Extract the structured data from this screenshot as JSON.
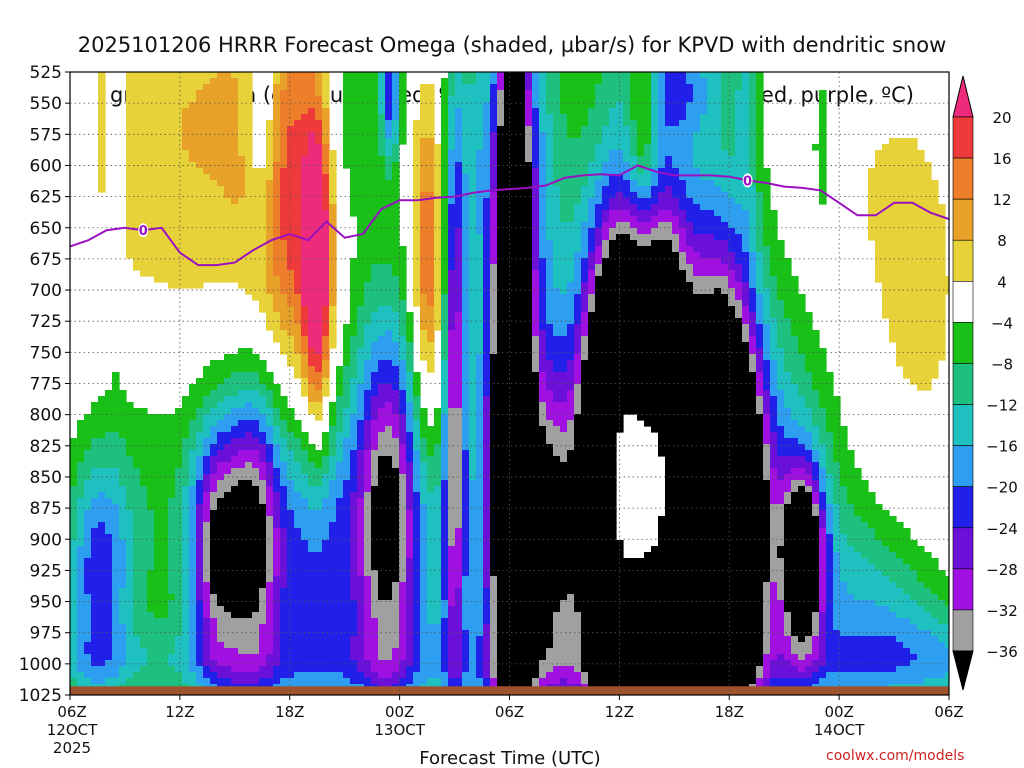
{
  "chart_data": {
    "type": "heatmap",
    "title_line1": "2025101206 HRRR Forecast Omega (shaded, µbar/s) for KPVD with dendritic snow",
    "title_line2": "growth region (contoured, red, ºC) and freezing level (contoured, purple, ºC)",
    "xlabel": "Forecast Time (UTC)",
    "x_hours": [
      0,
      6,
      12,
      18,
      24,
      30,
      36,
      42,
      48,
      54,
      60,
      66,
      72
    ],
    "x_ticks": [
      {
        "hour": 0,
        "lines": [
          "06Z",
          "12OCT",
          "2025"
        ]
      },
      {
        "hour": 6,
        "lines": [
          "12Z"
        ]
      },
      {
        "hour": 12,
        "lines": [
          "18Z"
        ]
      },
      {
        "hour": 18,
        "lines": [
          "00Z",
          "13OCT"
        ]
      },
      {
        "hour": 24,
        "lines": [
          "06Z"
        ]
      },
      {
        "hour": 30,
        "lines": [
          "12Z"
        ]
      },
      {
        "hour": 36,
        "lines": [
          "18Z"
        ]
      },
      {
        "hour": 42,
        "lines": [
          "00Z",
          "14OCT"
        ]
      },
      {
        "hour": 48,
        "lines": [
          "06Z"
        ]
      }
    ],
    "x_range": [
      0,
      48
    ],
    "y_levels": [
      "525",
      "550",
      "575",
      "600",
      "625",
      "650",
      "675",
      "700",
      "725",
      "750",
      "775",
      "800",
      "825",
      "850",
      "875",
      "900",
      "925",
      "950",
      "975",
      "1000",
      "1025"
    ],
    "y_range_hpa": [
      525,
      1025
    ],
    "colorbar": {
      "labels": [
        "20",
        "16",
        "12",
        "8",
        "4",
        "−4",
        "−8",
        "−12",
        "−16",
        "−20",
        "−24",
        "−28",
        "−32",
        "−36"
      ],
      "bins": [
        {
          "lo": 20,
          "hi": 99,
          "color": "#ee2a7b"
        },
        {
          "lo": 16,
          "hi": 20,
          "color": "#ee3a3a"
        },
        {
          "lo": 12,
          "hi": 16,
          "color": "#ee7f2a"
        },
        {
          "lo": 8,
          "hi": 12,
          "color": "#e8a22a"
        },
        {
          "lo": 4,
          "hi": 8,
          "color": "#e8d23a"
        },
        {
          "lo": -4,
          "hi": 4,
          "color": "#ffffff"
        },
        {
          "lo": -8,
          "hi": -4,
          "color": "#18c018"
        },
        {
          "lo": -12,
          "hi": -8,
          "color": "#1ec080"
        },
        {
          "lo": -16,
          "hi": -12,
          "color": "#1ec0c0"
        },
        {
          "lo": -20,
          "hi": -16,
          "color": "#2e9ef0"
        },
        {
          "lo": -24,
          "hi": -20,
          "color": "#2020e8"
        },
        {
          "lo": -28,
          "hi": -24,
          "color": "#6a10d8"
        },
        {
          "lo": -32,
          "hi": -28,
          "color": "#a010e0"
        },
        {
          "lo": -36,
          "hi": -32,
          "color": "#a0a0a0"
        },
        {
          "lo": -99,
          "hi": -36,
          "color": "#000000"
        }
      ]
    },
    "ground_color": "#a0522d",
    "freezing_level": {
      "label": "0",
      "color": "#9b10c0",
      "hours": [
        0,
        1,
        2,
        3,
        4,
        5,
        6,
        7,
        8,
        9,
        10,
        11,
        12,
        13,
        14,
        15,
        16,
        17,
        18,
        19,
        20,
        21,
        22,
        23,
        24,
        25,
        26,
        27,
        28,
        29,
        30,
        31,
        32,
        33,
        34,
        35,
        36,
        37,
        38,
        39,
        40,
        41,
        42,
        43,
        44,
        45,
        46,
        47,
        48
      ],
      "levels": [
        665,
        660,
        652,
        650,
        652,
        650,
        670,
        680,
        680,
        678,
        668,
        660,
        655,
        660,
        645,
        658,
        655,
        635,
        628,
        628,
        626,
        625,
        622,
        620,
        619,
        618,
        616,
        610,
        608,
        607,
        608,
        600,
        605,
        608,
        608,
        608,
        609,
        612,
        614,
        617,
        618,
        620,
        630,
        640,
        640,
        630,
        630,
        638,
        643
      ],
      "label_hours": [
        4,
        37
      ]
    },
    "omega_centers": [
      {
        "h": 1.5,
        "p": 930,
        "sx": 1.3,
        "sy": 70,
        "v": -20
      },
      {
        "h": 3.5,
        "p": 850,
        "sx": 2.2,
        "sy": 110,
        "v": -8
      },
      {
        "h": 8.0,
        "p": 910,
        "sx": 1.0,
        "sy": 70,
        "v": -28
      },
      {
        "h": 10.0,
        "p": 900,
        "sx": 1.0,
        "sy": 80,
        "v": -26
      },
      {
        "h": 9.0,
        "p": 880,
        "sx": 3.0,
        "sy": 130,
        "v": -12
      },
      {
        "h": 12.0,
        "p": 880,
        "sx": 1.6,
        "sy": 120,
        "v": -8
      },
      {
        "h": 14.0,
        "p": 920,
        "sx": 2.0,
        "sy": 80,
        "v": -12
      },
      {
        "h": 17.5,
        "p": 890,
        "sx": 1.1,
        "sy": 100,
        "v": -26
      },
      {
        "h": 16.5,
        "p": 860,
        "sx": 1.8,
        "sy": 140,
        "v": -14
      },
      {
        "h": 21.0,
        "p": 780,
        "sx": 0.4,
        "sy": 160,
        "v": -28
      },
      {
        "h": 20.5,
        "p": 930,
        "sx": 1.4,
        "sy": 90,
        "v": -10
      },
      {
        "h": 24.2,
        "p": 780,
        "sx": 0.6,
        "sy": 230,
        "v": -60
      },
      {
        "h": 23.8,
        "p": 820,
        "sx": 1.2,
        "sy": 220,
        "v": -22
      },
      {
        "h": 26.0,
        "p": 900,
        "sx": 1.4,
        "sy": 90,
        "v": -30
      },
      {
        "h": 29.5,
        "p": 850,
        "sx": 1.1,
        "sy": 130,
        "v": -55
      },
      {
        "h": 31.0,
        "p": 860,
        "sx": 1.1,
        "sy": 140,
        "v": -52
      },
      {
        "h": 32.6,
        "p": 860,
        "sx": 1.0,
        "sy": 130,
        "v": -52
      },
      {
        "h": 35.5,
        "p": 860,
        "sx": 1.3,
        "sy": 120,
        "v": -50
      },
      {
        "h": 36.5,
        "p": 900,
        "sx": 1.0,
        "sy": 80,
        "v": -30
      },
      {
        "h": 40.0,
        "p": 915,
        "sx": 0.8,
        "sy": 50,
        "v": -40
      },
      {
        "h": 31.5,
        "p": 820,
        "sx": 5.0,
        "sy": 230,
        "v": -20
      },
      {
        "h": 38.5,
        "p": 880,
        "sx": 3.0,
        "sy": 130,
        "v": -14
      },
      {
        "h": 44.0,
        "p": 960,
        "sx": 2.5,
        "sy": 60,
        "v": -12
      },
      {
        "h": 48.0,
        "p": 990,
        "sx": 3.0,
        "sy": 40,
        "v": -8
      },
      {
        "h": 12.5,
        "p": 660,
        "sx": 1.6,
        "sy": 120,
        "v": 15
      },
      {
        "h": 13.5,
        "p": 690,
        "sx": 0.5,
        "sy": 90,
        "v": 22
      },
      {
        "h": 10.0,
        "p": 620,
        "sx": 3.5,
        "sy": 180,
        "v": 8
      },
      {
        "h": 19.5,
        "p": 680,
        "sx": 0.6,
        "sy": 90,
        "v": 18
      },
      {
        "h": 4.0,
        "p": 640,
        "sx": 3.0,
        "sy": 220,
        "v": 6
      },
      {
        "h": 31.3,
        "p": 560,
        "sx": 0.6,
        "sy": 80,
        "v": 14
      },
      {
        "h": 30.0,
        "p": 620,
        "sx": 1.8,
        "sy": 130,
        "v": 7
      },
      {
        "h": 39.5,
        "p": 640,
        "sx": 3.0,
        "sy": 180,
        "v": 5
      },
      {
        "h": 46.0,
        "p": 700,
        "sx": 3.0,
        "sy": 160,
        "v": 5
      },
      {
        "h": 2.5,
        "p": 560,
        "sx": 0.3,
        "sy": 120,
        "v": -8
      },
      {
        "h": 10.5,
        "p": 550,
        "sx": 0.6,
        "sy": 70,
        "v": -12
      },
      {
        "h": 15.0,
        "p": 550,
        "sx": 1.2,
        "sy": 80,
        "v": -10
      },
      {
        "h": 17.5,
        "p": 540,
        "sx": 0.4,
        "sy": 40,
        "v": -22
      },
      {
        "h": 22.0,
        "p": 575,
        "sx": 0.8,
        "sy": 80,
        "v": -8
      },
      {
        "h": 25.5,
        "p": 590,
        "sx": 0.9,
        "sy": 100,
        "v": -7
      },
      {
        "h": 33.0,
        "p": 535,
        "sx": 2.0,
        "sy": 30,
        "v": -12
      },
      {
        "h": 37.0,
        "p": 545,
        "sx": 0.5,
        "sy": 80,
        "v": -8
      },
      {
        "h": 41.0,
        "p": 580,
        "sx": 0.3,
        "sy": 50,
        "v": -10
      }
    ]
  },
  "credit": "coolwx.com/models"
}
